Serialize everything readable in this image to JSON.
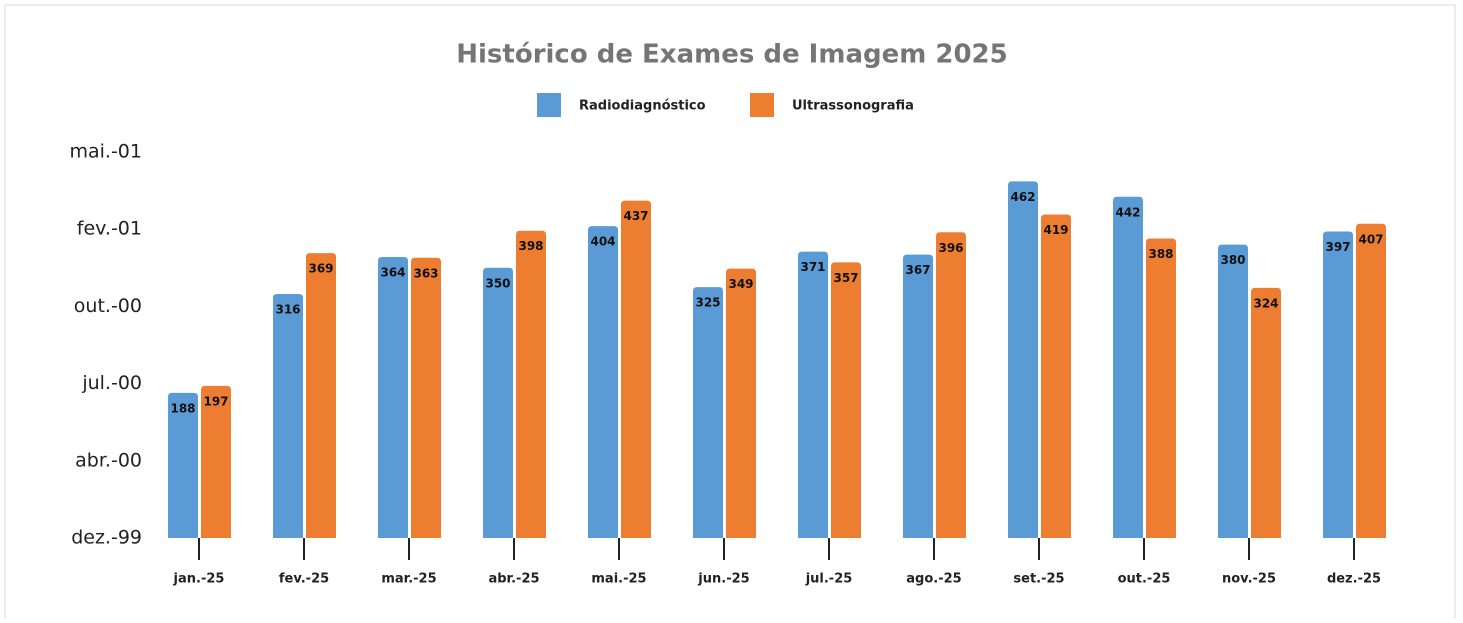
{
  "chart_data": {
    "type": "bar",
    "title": "Histórico de Exames de Imagem 2025",
    "categories": [
      "jan.-25",
      "fev.-25",
      "mar.-25",
      "abr.-25",
      "mai.-25",
      "jun.-25",
      "jul.-25",
      "ago.-25",
      "set.-25",
      "out.-25",
      "nov.-25",
      "dez.-25"
    ],
    "series": [
      {
        "name": "Radiodiagnóstico",
        "color": "#5b9bd5",
        "values": [
          188,
          316,
          364,
          350,
          404,
          325,
          371,
          367,
          462,
          442,
          380,
          397
        ]
      },
      {
        "name": "Ultrassonografia",
        "color": "#ed7d31",
        "values": [
          197,
          369,
          363,
          398,
          437,
          349,
          357,
          396,
          419,
          388,
          324,
          407
        ]
      }
    ],
    "ylim": [
      0,
      500
    ],
    "yticks": [
      {
        "value": 0,
        "label": "dez.-99"
      },
      {
        "value": 100,
        "label": "abr.-00"
      },
      {
        "value": 200,
        "label": "jul.-00"
      },
      {
        "value": 300,
        "label": "out.-00"
      },
      {
        "value": 400,
        "label": "fev.-01"
      },
      {
        "value": 500,
        "label": "mai.-01"
      }
    ],
    "legend": "top"
  }
}
